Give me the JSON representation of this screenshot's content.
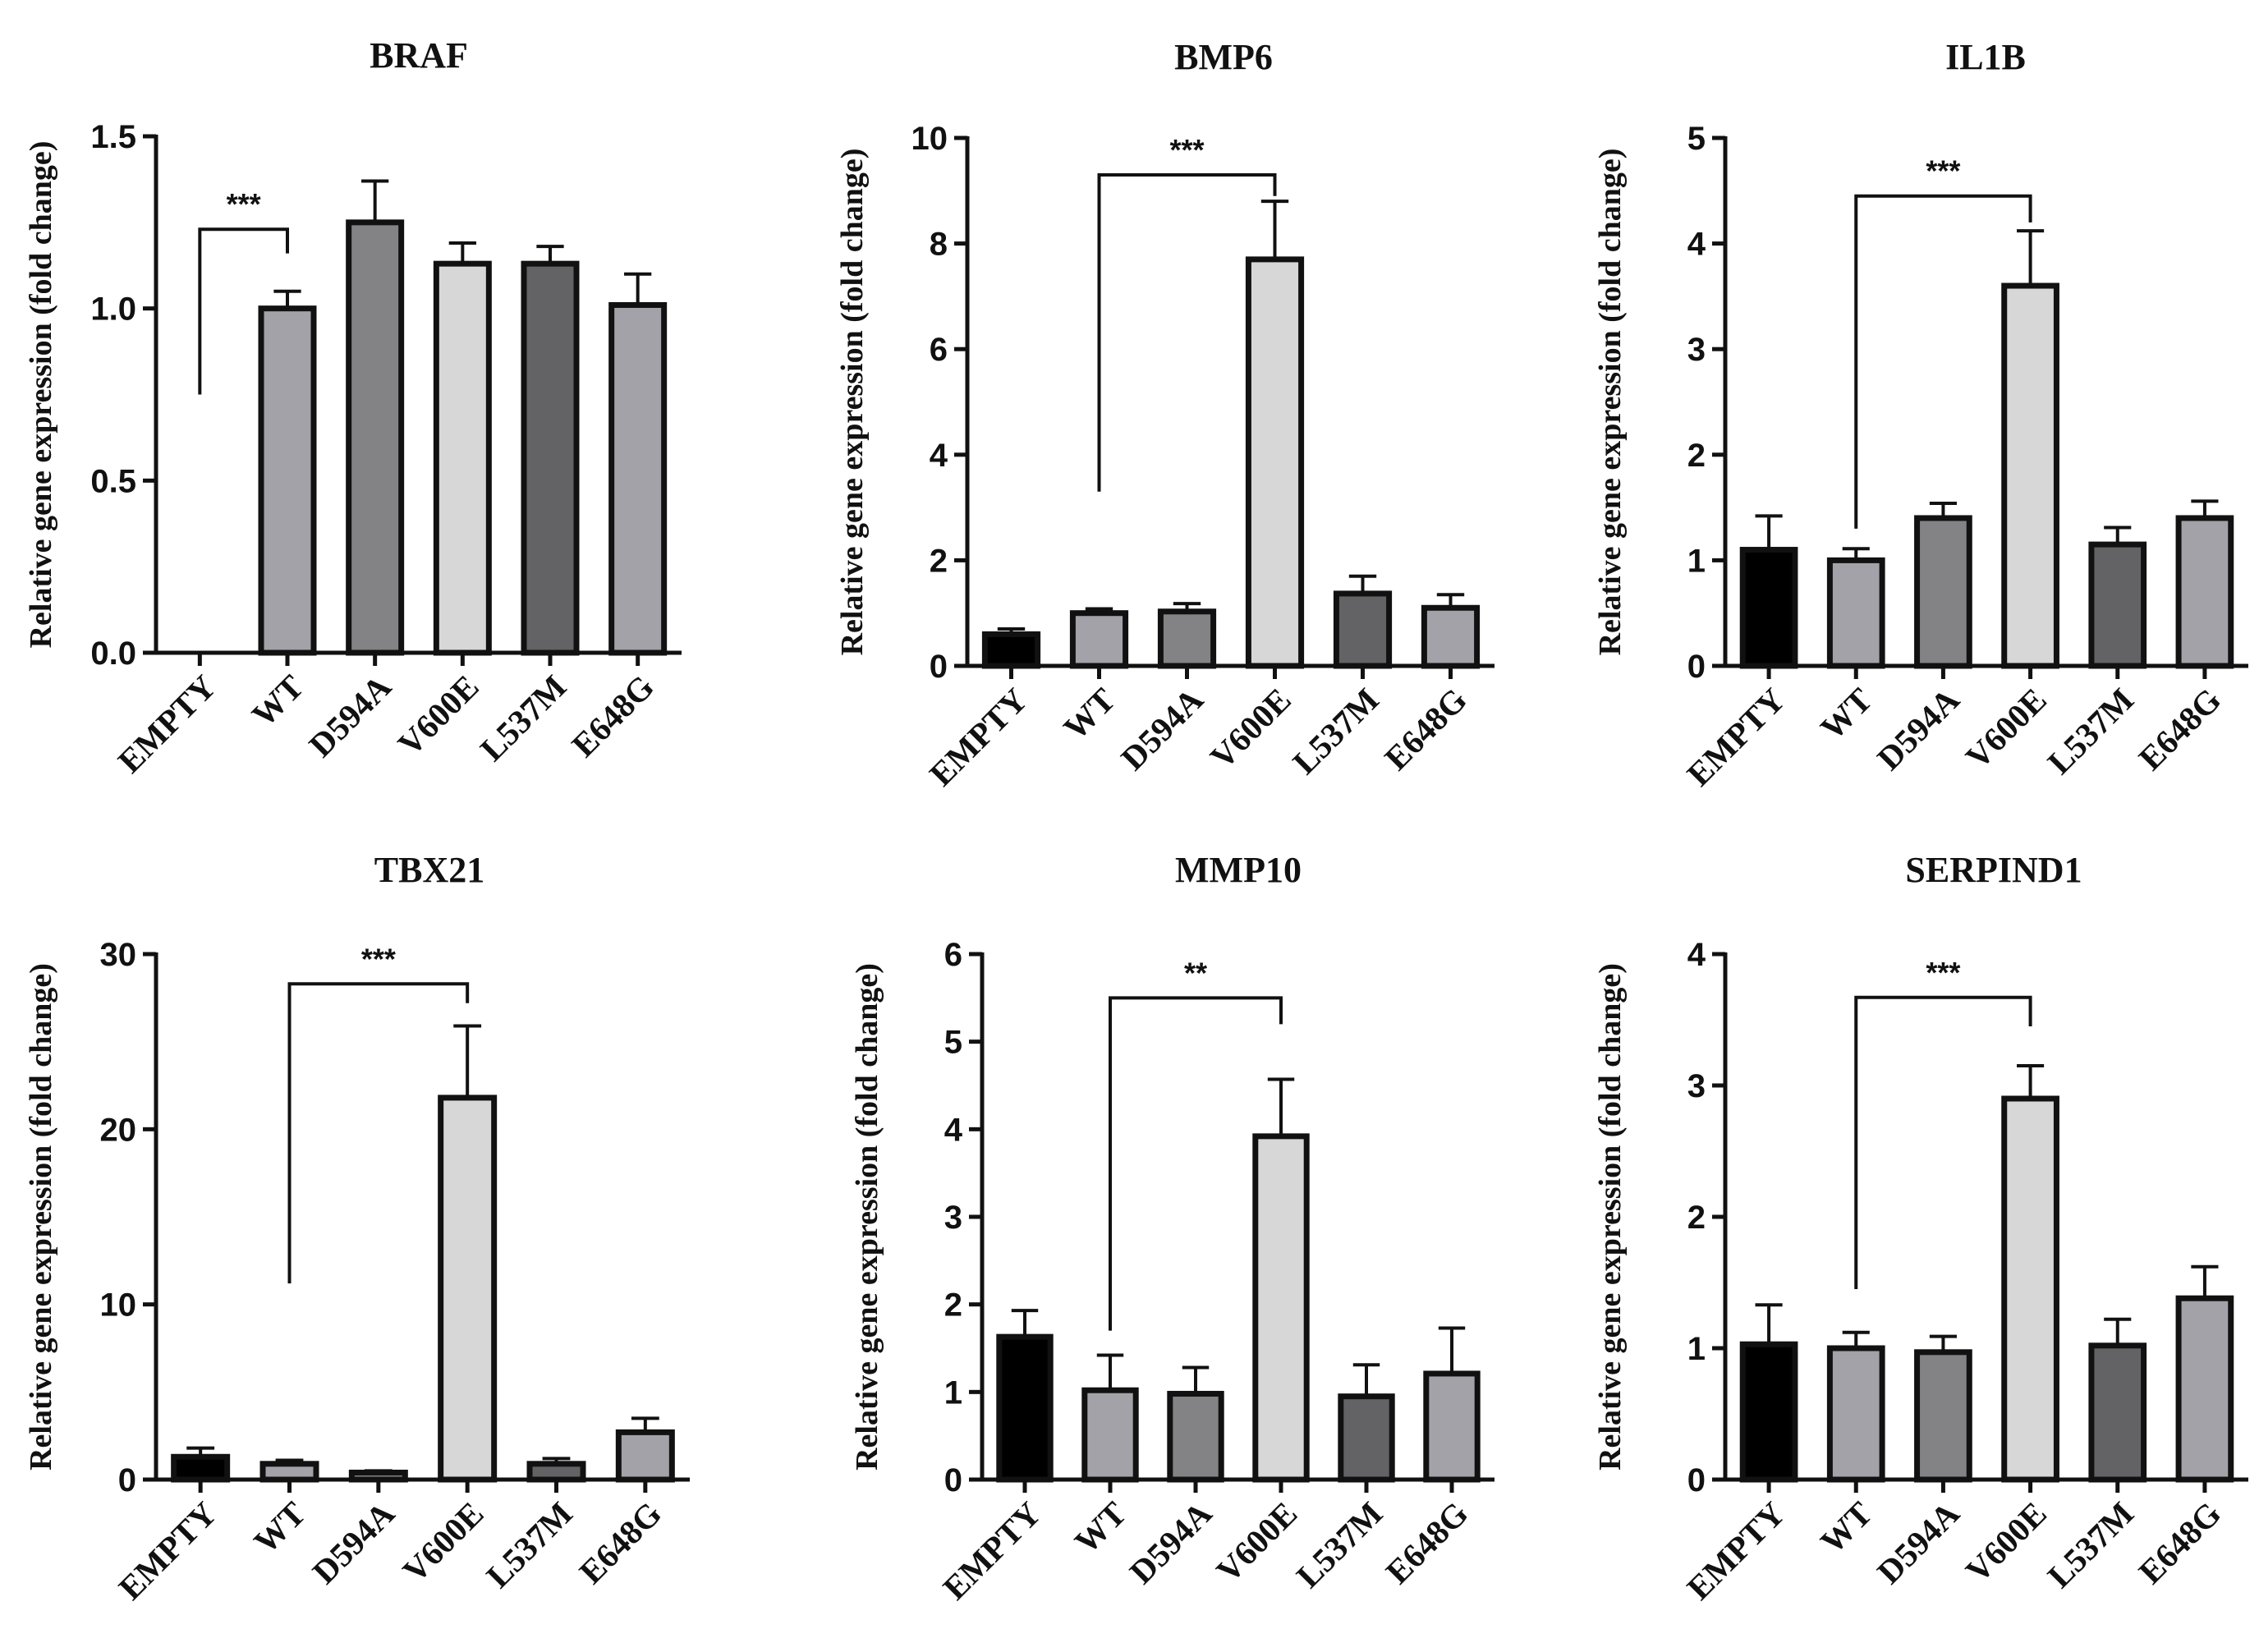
{
  "chart_data": [
    {
      "type": "bar",
      "title": "BRAF",
      "ylabel": "Relative gene expression (fold change)",
      "xlabel": "",
      "ylim": [
        0,
        1.5
      ],
      "yticks": [
        "0.0",
        "0.5",
        "1.0",
        "1.5"
      ],
      "categories": [
        "EMPTY",
        "WT",
        "D594A",
        "V600E",
        "L537M",
        "E648G"
      ],
      "values": [
        0,
        1.0,
        1.25,
        1.13,
        1.13,
        1.01
      ],
      "errors": [
        0,
        0.05,
        0.12,
        0.06,
        0.05,
        0.09
      ],
      "bar_colors": [
        "#000000",
        "#a3a2a8",
        "#838386",
        "#d7d7d7",
        "#636265",
        "#a3a2a8"
      ],
      "significance": {
        "label": "***",
        "from": 0,
        "to": 1,
        "y": 1.23,
        "left_bottom": 0.75,
        "right_bottom": 1.16
      }
    },
    {
      "type": "bar",
      "title": "BMP6",
      "ylabel": "Relative gene expression (fold change)",
      "xlabel": "",
      "ylim": [
        0,
        10
      ],
      "yticks": [
        "0",
        "2",
        "4",
        "6",
        "8",
        "10"
      ],
      "categories": [
        "EMPTY",
        "WT",
        "D594A",
        "V600E",
        "L537M",
        "E648G"
      ],
      "values": [
        0.6,
        1.0,
        1.03,
        7.7,
        1.37,
        1.1
      ],
      "errors": [
        0.1,
        0.08,
        0.15,
        1.1,
        0.33,
        0.25
      ],
      "bar_colors": [
        "#000000",
        "#a3a2a8",
        "#838386",
        "#d7d7d7",
        "#636265",
        "#a3a2a8"
      ],
      "significance": {
        "label": "***",
        "from": 1,
        "to": 3,
        "y": 9.3,
        "left_bottom": 3.3,
        "right_bottom": 8.9
      }
    },
    {
      "type": "bar",
      "title": "IL1B",
      "ylabel": "Relative gene expression (fold change)",
      "xlabel": "",
      "ylim": [
        0,
        5
      ],
      "yticks": [
        "0",
        "1",
        "2",
        "3",
        "4",
        "5"
      ],
      "categories": [
        "EMPTY",
        "WT",
        "D594A",
        "V600E",
        "L537M",
        "E648G"
      ],
      "values": [
        1.1,
        1.0,
        1.4,
        3.6,
        1.15,
        1.4
      ],
      "errors": [
        0.32,
        0.11,
        0.14,
        0.52,
        0.16,
        0.16
      ],
      "bar_colors": [
        "#000000",
        "#a3a2a8",
        "#838386",
        "#d7d7d7",
        "#636265",
        "#a3a2a8"
      ],
      "significance": {
        "label": "***",
        "from": 1,
        "to": 3,
        "y": 4.45,
        "left_bottom": 1.3,
        "right_bottom": 4.2
      }
    },
    {
      "type": "bar",
      "title": "TBX21",
      "ylabel": "Relative gene expression (fold change)",
      "xlabel": "",
      "ylim": [
        0,
        30
      ],
      "yticks": [
        "0",
        "10",
        "20",
        "30"
      ],
      "categories": [
        "EMPTY",
        "WT",
        "D594A",
        "V600E",
        "L537M",
        "E648G"
      ],
      "values": [
        1.3,
        0.9,
        0.4,
        21.8,
        0.9,
        2.7
      ],
      "errors": [
        0.5,
        0.2,
        0.1,
        4.1,
        0.3,
        0.8
      ],
      "bar_colors": [
        "#000000",
        "#a3a2a8",
        "#838386",
        "#d7d7d7",
        "#636265",
        "#a3a2a8"
      ],
      "significance": {
        "label": "***",
        "from": 1,
        "to": 3,
        "y": 28.3,
        "left_bottom": 11.2,
        "right_bottom": 27.2
      }
    },
    {
      "type": "bar",
      "title": "MMP10",
      "ylabel": "Relative gene expression (fold change)",
      "xlabel": "",
      "ylim": [
        0,
        6
      ],
      "yticks": [
        "0",
        "1",
        "2",
        "3",
        "4",
        "5",
        "6"
      ],
      "categories": [
        "EMPTY",
        "WT",
        "D594A",
        "V600E",
        "L537M",
        "E648G"
      ],
      "values": [
        1.63,
        1.02,
        0.98,
        3.92,
        0.95,
        1.21
      ],
      "errors": [
        0.3,
        0.4,
        0.3,
        0.65,
        0.36,
        0.52
      ],
      "bar_colors": [
        "#000000",
        "#a3a2a8",
        "#838386",
        "#d7d7d7",
        "#636265",
        "#a3a2a8"
      ],
      "significance": {
        "label": "**",
        "from": 1,
        "to": 3,
        "y": 5.5,
        "left_bottom": 1.7,
        "right_bottom": 5.2
      }
    },
    {
      "type": "bar",
      "title": "SERPIND1",
      "ylabel": "Relative gene expression (fold change)",
      "xlabel": "",
      "ylim": [
        0,
        4
      ],
      "yticks": [
        "0",
        "1",
        "2",
        "3",
        "4"
      ],
      "categories": [
        "EMPTY",
        "WT",
        "D594A",
        "V600E",
        "L537M",
        "E648G"
      ],
      "values": [
        1.03,
        1.0,
        0.97,
        2.9,
        1.02,
        1.38
      ],
      "errors": [
        0.3,
        0.12,
        0.12,
        0.25,
        0.2,
        0.24
      ],
      "bar_colors": [
        "#000000",
        "#a3a2a8",
        "#838386",
        "#d7d7d7",
        "#636265",
        "#a3a2a8"
      ],
      "significance": {
        "label": "***",
        "from": 1,
        "to": 3,
        "y": 3.67,
        "left_bottom": 1.45,
        "right_bottom": 3.45
      }
    }
  ]
}
